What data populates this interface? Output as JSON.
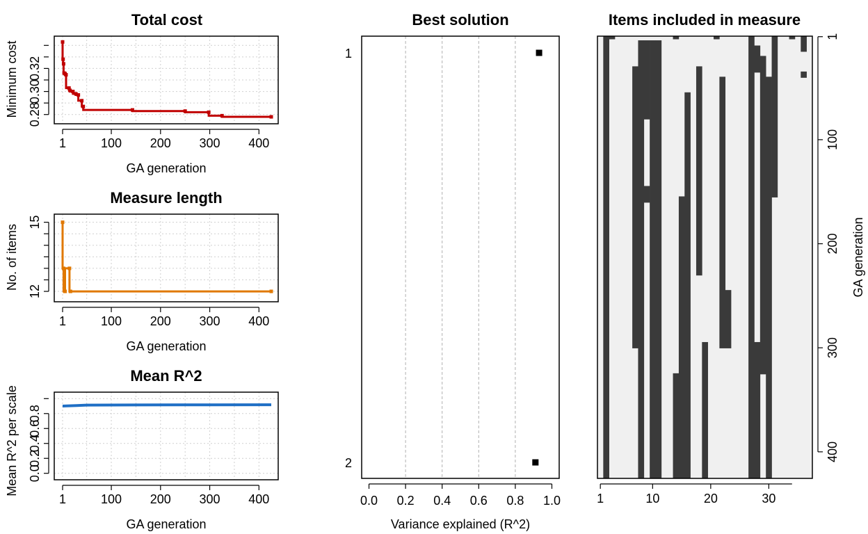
{
  "chart_data": [
    {
      "type": "line",
      "title": "Total cost",
      "xlabel": "GA generation",
      "ylabel": "Minimum cost",
      "xlim": [
        1,
        425
      ],
      "ylim": [
        0.275,
        0.345
      ],
      "x_ticks": [
        "1",
        "100",
        "200",
        "300",
        "400"
      ],
      "y_ticks": [
        "0.28",
        "0.30",
        "0.32"
      ],
      "color": "#c00000",
      "grid": true,
      "series": [
        {
          "x": [
            1,
            2,
            3,
            4,
            6,
            8,
            14,
            16,
            22,
            28,
            33,
            40,
            43,
            143,
            250,
            298,
            325,
            425
          ],
          "y": [
            0.343,
            0.328,
            0.324,
            0.316,
            0.3155,
            0.3145,
            0.303,
            0.301,
            0.3,
            0.298,
            0.297,
            0.292,
            0.287,
            0.284,
            0.283,
            0.282,
            0.279,
            0.278
          ]
        }
      ]
    },
    {
      "type": "line",
      "title": "Measure length",
      "xlabel": "GA generation",
      "ylabel": "No. of items",
      "xlim": [
        1,
        425
      ],
      "ylim": [
        11.7,
        15.2
      ],
      "x_ticks": [
        "1",
        "100",
        "200",
        "300",
        "400"
      ],
      "y_ticks": [
        "12",
        "15"
      ],
      "color": "#e07800",
      "grid": true,
      "series": [
        {
          "x": [
            1,
            3,
            6,
            15,
            17,
            425
          ],
          "y": [
            15,
            13,
            12,
            13,
            12,
            12
          ]
        }
      ]
    },
    {
      "type": "line",
      "title": "Mean R^2",
      "xlabel": "GA generation",
      "ylabel": "Mean R^2 per scale",
      "xlim": [
        1,
        425
      ],
      "ylim": [
        -0.04,
        1.04
      ],
      "x_ticks": [
        "1",
        "100",
        "200",
        "300",
        "400"
      ],
      "y_ticks": [
        "0.0",
        "0.2",
        "0.4",
        "0.6",
        "0.8"
      ],
      "color": "#1f6fc5",
      "grid": true,
      "series": [
        {
          "x": [
            1,
            10,
            30,
            50,
            150,
            300,
            425
          ],
          "y": [
            0.9,
            0.903,
            0.908,
            0.913,
            0.915,
            0.917,
            0.918
          ]
        }
      ]
    },
    {
      "type": "scatter",
      "title": "Best solution",
      "xlabel": "Variance explained (R^2)",
      "ylabel": "",
      "xlim": [
        -0.04,
        1.04
      ],
      "x_ticks": [
        "0.0",
        "0.2",
        "0.4",
        "0.6",
        "0.8",
        "1.0"
      ],
      "categories": [
        "1",
        "2"
      ],
      "grid": "vertical dashed",
      "series": [
        {
          "x": [
            0.93,
            0.91
          ],
          "y": [
            "1",
            "2"
          ]
        }
      ]
    },
    {
      "type": "heatmap",
      "title": "Items included in measure",
      "xlabel": "",
      "ylabel": "GA generation",
      "x_ticks": [
        "1",
        "10",
        "20",
        "30"
      ],
      "y_ticks": [
        "1",
        "100",
        "200",
        "300",
        "400"
      ],
      "n_items": 37,
      "n_generations": 425,
      "colors": {
        "included": "#3a3a3a",
        "excluded": "#f0f0f0"
      },
      "included_runs": [
        {
          "item": 2,
          "ranges": [
            [
              1,
              425
            ]
          ]
        },
        {
          "item": 3,
          "ranges": [
            [
              1,
              3
            ]
          ]
        },
        {
          "item": 7,
          "ranges": [
            [
              30,
              300
            ]
          ]
        },
        {
          "item": 8,
          "ranges": [
            [
              5,
              425
            ]
          ]
        },
        {
          "item": 9,
          "ranges": [
            [
              5,
              80
            ],
            [
              145,
              160
            ]
          ]
        },
        {
          "item": 10,
          "ranges": [
            [
              5,
              425
            ]
          ]
        },
        {
          "item": 11,
          "ranges": [
            [
              5,
              425
            ]
          ]
        },
        {
          "item": 14,
          "ranges": [
            [
              1,
              3
            ],
            [
              325,
              425
            ]
          ]
        },
        {
          "item": 15,
          "ranges": [
            [
              155,
              425
            ]
          ]
        },
        {
          "item": 16,
          "ranges": [
            [
              55,
              425
            ]
          ]
        },
        {
          "item": 18,
          "ranges": [
            [
              30,
              230
            ]
          ]
        },
        {
          "item": 19,
          "ranges": [
            [
              295,
              425
            ]
          ]
        },
        {
          "item": 21,
          "ranges": [
            [
              1,
              3
            ]
          ]
        },
        {
          "item": 22,
          "ranges": [
            [
              40,
              300
            ]
          ]
        },
        {
          "item": 23,
          "ranges": [
            [
              245,
              300
            ]
          ]
        },
        {
          "item": 27,
          "ranges": [
            [
              1,
              425
            ]
          ]
        },
        {
          "item": 28,
          "ranges": [
            [
              10,
              35
            ],
            [
              295,
              425
            ]
          ]
        },
        {
          "item": 29,
          "ranges": [
            [
              20,
              325
            ]
          ]
        },
        {
          "item": 30,
          "ranges": [
            [
              40,
              425
            ]
          ]
        },
        {
          "item": 31,
          "ranges": [
            [
              1,
              155
            ]
          ]
        },
        {
          "item": 34,
          "ranges": [
            [
              1,
              3
            ]
          ]
        },
        {
          "item": 36,
          "ranges": [
            [
              1,
              15
            ],
            [
              35,
              40
            ]
          ]
        }
      ]
    }
  ]
}
